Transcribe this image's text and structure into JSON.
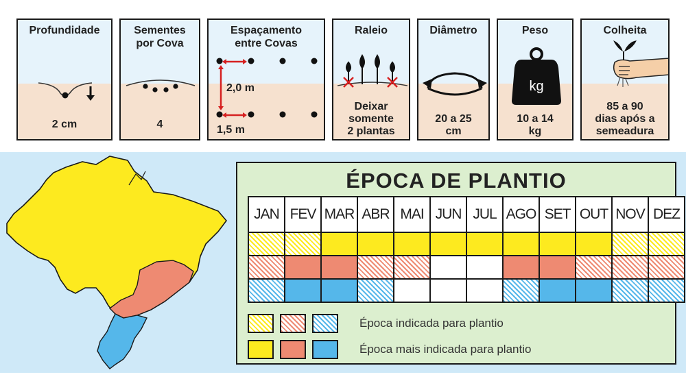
{
  "colors": {
    "yellow": "#fdea1f",
    "red": "#ee8a72",
    "blue": "#55b7ea",
    "white": "#ffffff",
    "map_green_bg": "#dcefcf",
    "map_sea": "#cfe9f8"
  },
  "cards": [
    {
      "title": "Profundidade",
      "value": "2 cm",
      "icon": "depth-icon"
    },
    {
      "title": "Sementes\npor Cova",
      "value": "4",
      "icon": "seeds-icon"
    },
    {
      "title": "Espaçamento\nentre Covas",
      "value": "",
      "icon": "spacing-icon",
      "labels": {
        "vertical": "2,0 m",
        "horizontal": "1,5 m"
      }
    },
    {
      "title": "Raleio",
      "value": "Deixar\nsomente\n2 plantas",
      "icon": "thinning-icon"
    },
    {
      "title": "Diâmetro",
      "value": "20 a 25\ncm",
      "icon": "diameter-icon"
    },
    {
      "title": "Peso",
      "value": "10 a 14\nkg",
      "icon": "weight-icon",
      "weight_label": "kg"
    },
    {
      "title": "Colheita",
      "value": "85 a 90\ndias após a\nsemeadura",
      "icon": "harvest-icon"
    }
  ],
  "calendar": {
    "title": "ÉPOCA DE PLANTIO",
    "months": [
      "JAN",
      "FEV",
      "MAR",
      "ABR",
      "MAI",
      "JUN",
      "JUL",
      "AGO",
      "SET",
      "OUT",
      "NOV",
      "DEZ"
    ],
    "rows": [
      {
        "region": "yellow",
        "cells": [
          "h",
          "h",
          "s",
          "s",
          "s",
          "s",
          "s",
          "s",
          "s",
          "s",
          "h",
          "h"
        ]
      },
      {
        "region": "red",
        "cells": [
          "h",
          "s",
          "s",
          "h",
          "h",
          "w",
          "w",
          "s",
          "s",
          "h",
          "h",
          "h"
        ]
      },
      {
        "region": "blue",
        "cells": [
          "h",
          "s",
          "s",
          "h",
          "w",
          "w",
          "w",
          "h",
          "s",
          "s",
          "h",
          "h"
        ]
      }
    ]
  },
  "legend": [
    {
      "label": "Época indicada para plantio",
      "style": "h"
    },
    {
      "label": "Época mais indicada para plantio",
      "style": "s"
    }
  ]
}
